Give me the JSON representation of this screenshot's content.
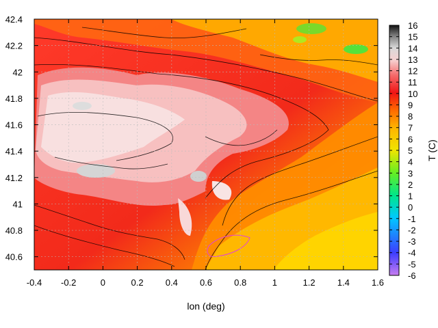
{
  "chart_data": {
    "type": "heatmap",
    "xlabel": "lon (deg)",
    "ylabel": "",
    "colorbar_label": "T (C)",
    "xlim": [
      -0.4,
      1.6
    ],
    "ylim": [
      40.5,
      42.4
    ],
    "xticks": [
      "-0.4",
      "-0.2",
      "0",
      "0.2",
      "0.4",
      "0.6",
      "0.8",
      "1",
      "1.2",
      "1.4",
      "1.6"
    ],
    "yticks": [
      "40.6",
      "40.8",
      "41",
      "41.2",
      "41.4",
      "41.6",
      "41.8",
      "42",
      "42.2",
      "42.4"
    ],
    "colorbar_range": [
      -6,
      16
    ],
    "colorbar_ticks": [
      "-6",
      "-5",
      "-4",
      "-3",
      "-2",
      "-1",
      "0",
      "1",
      "2",
      "3",
      "4",
      "5",
      "6",
      "7",
      "8",
      "9",
      "10",
      "11",
      "12",
      "13",
      "14",
      "15",
      "16"
    ],
    "grid": true,
    "contours": true,
    "colors": {
      "palette": [
        "#c77cf0",
        "#3d3dff",
        "#00c8ff",
        "#00e68a",
        "#66ee22",
        "#f0e500",
        "#ffb400",
        "#ff6a00",
        "#f01414",
        "#f46a6a",
        "#f7d0d0",
        "#d8d8d8",
        "#7a7a7a",
        "#111111"
      ],
      "grid": "#bbbbbb",
      "contour": "#000000"
    }
  }
}
